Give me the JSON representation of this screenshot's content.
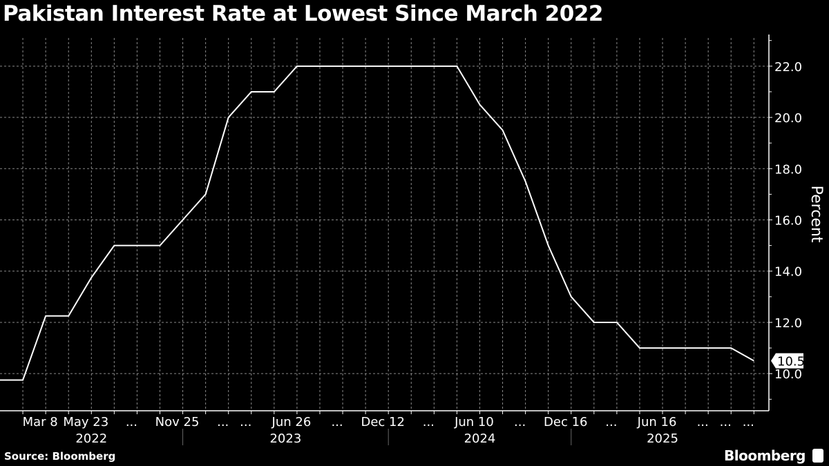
{
  "title": "Pakistan Interest Rate at Lowest Since March 2022",
  "source": "Source: Bloomberg",
  "brand": "Bloomberg",
  "chart_data": {
    "type": "line",
    "title": "Pakistan Interest Rate at Lowest Since March 2022",
    "ylabel": "Percent",
    "xlabel": "",
    "ylim": [
      8.55,
      23.1
    ],
    "yticks": [
      "10.0",
      "12.0",
      "14.0",
      "16.0",
      "18.0",
      "20.0",
      "22.0"
    ],
    "ytick_values": [
      10,
      12,
      14,
      16,
      18,
      20,
      22
    ],
    "grid": true,
    "y_axis_side": "right",
    "line_color": "#ffffff",
    "last_value_label": "10.5",
    "categories": [
      "",
      "",
      "Mar 8",
      "",
      "May 23",
      "",
      "...",
      "",
      "Nov 25",
      "",
      "...",
      "...",
      "",
      "Jun 26",
      "",
      "...",
      "",
      "Dec 12",
      "",
      "...",
      "",
      "Jun 10",
      "",
      "...",
      "",
      "Dec 16",
      "",
      "...",
      "",
      "Jun 16",
      "",
      "...",
      "...",
      "..."
    ],
    "year_groups": [
      {
        "label": "2022",
        "from": 0,
        "to": 8
      },
      {
        "label": "2023",
        "from": 8,
        "to": 17
      },
      {
        "label": "2024",
        "from": 17,
        "to": 25
      },
      {
        "label": "2025",
        "from": 25,
        "to": 33
      }
    ],
    "series": [
      {
        "values": [
          9.75,
          9.75,
          12.25,
          12.25,
          13.75,
          15,
          15,
          15,
          16,
          17,
          20,
          21,
          21,
          22,
          22,
          22,
          22,
          22,
          22,
          22,
          22,
          20.5,
          19.5,
          17.5,
          15,
          13,
          12,
          12,
          11,
          11,
          11,
          11,
          11,
          10.5
        ]
      }
    ]
  }
}
